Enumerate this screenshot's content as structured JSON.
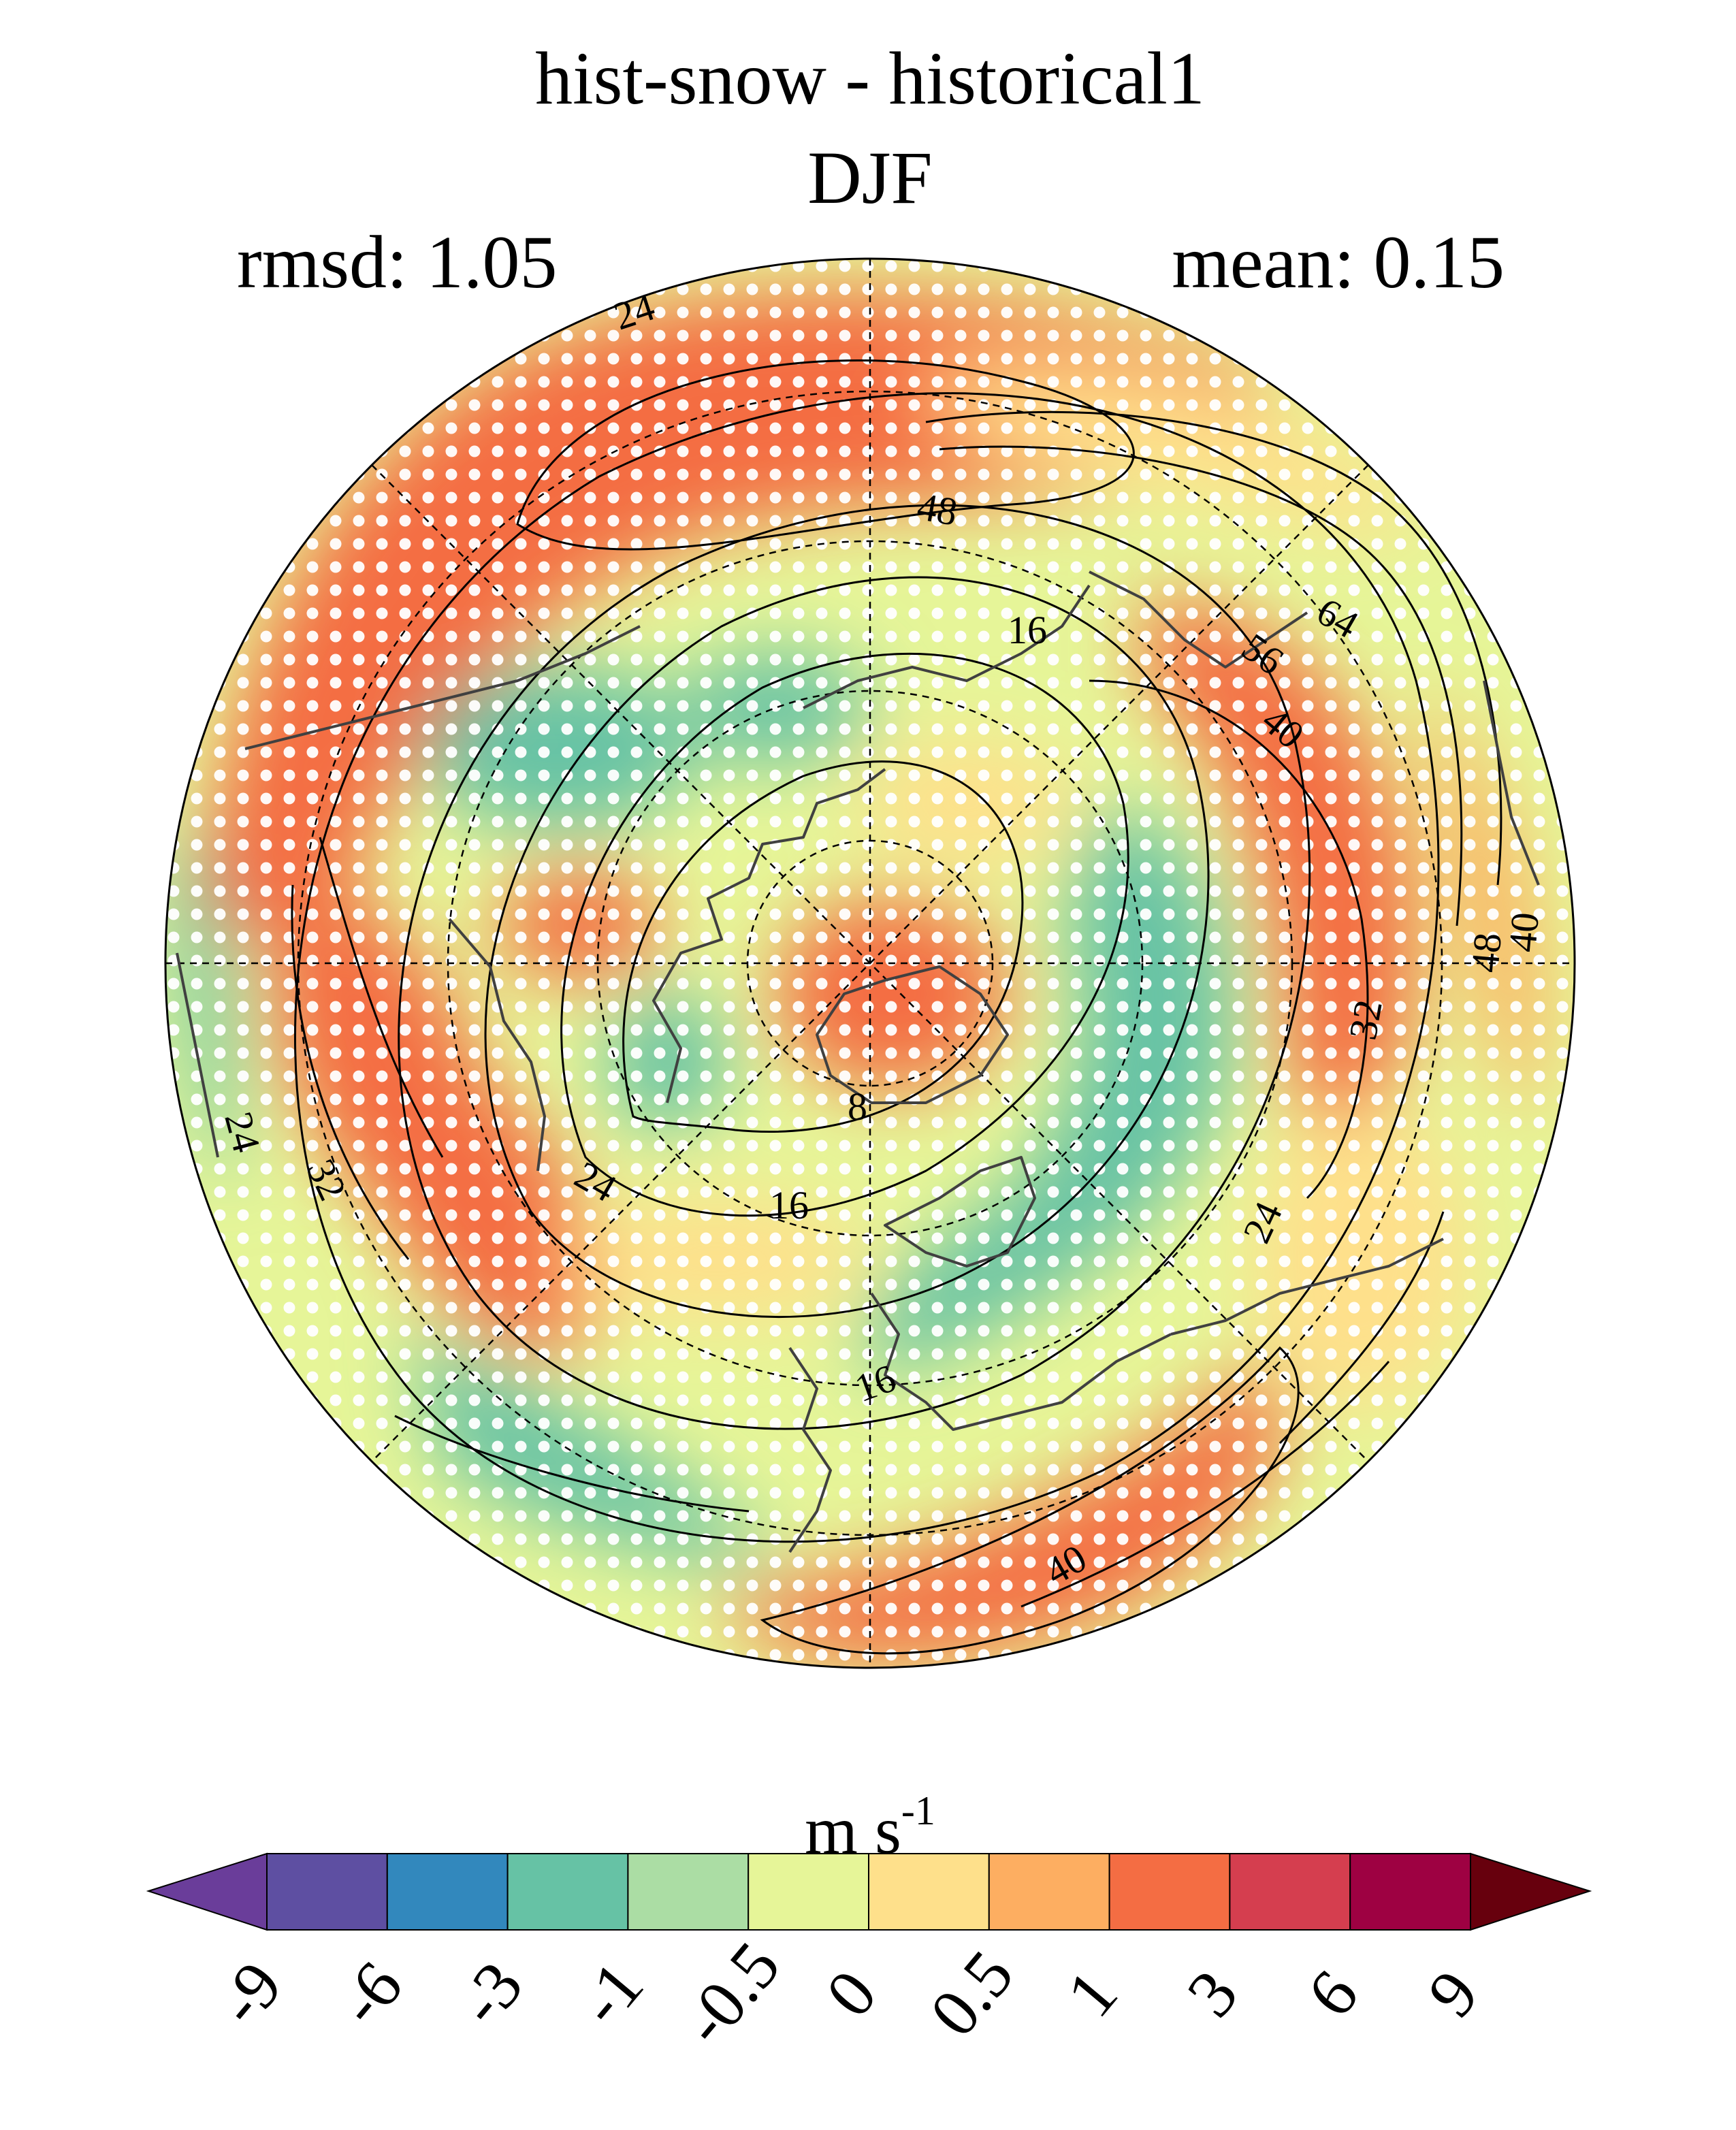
{
  "title": {
    "line1": "hist-snow - historical1",
    "line2": "DJF",
    "left_stat": "rmsd: 1.05",
    "right_stat": "mean: 0.15"
  },
  "map": {
    "projection": "north polar stereographic",
    "fill_variable_units": "m s",
    "units_exponent": "-1",
    "stippling": "white dots",
    "contour_labels": [
      "24",
      "48",
      "16",
      "64",
      "56",
      "40",
      "32",
      "48",
      "40",
      "8",
      "24",
      "32",
      "24",
      "16",
      "24",
      "16",
      "40"
    ]
  },
  "colorbar": {
    "colors": [
      "#5e4fa2",
      "#3288bd",
      "#66c2a5",
      "#abdda4",
      "#e6f598",
      "#fee08b",
      "#fdae61",
      "#f46d43",
      "#d53e4f",
      "#9e0142"
    ],
    "under_color": "#6a3d9a",
    "over_color": "#67000d",
    "tick_labels": [
      "-9",
      "-6",
      "-3",
      "-1",
      "-0.5",
      "0",
      "0.5",
      "1",
      "3",
      "6",
      "9"
    ]
  },
  "colors": {
    "contour": "#000000",
    "coastline": "#404040",
    "grid": "#000000"
  }
}
